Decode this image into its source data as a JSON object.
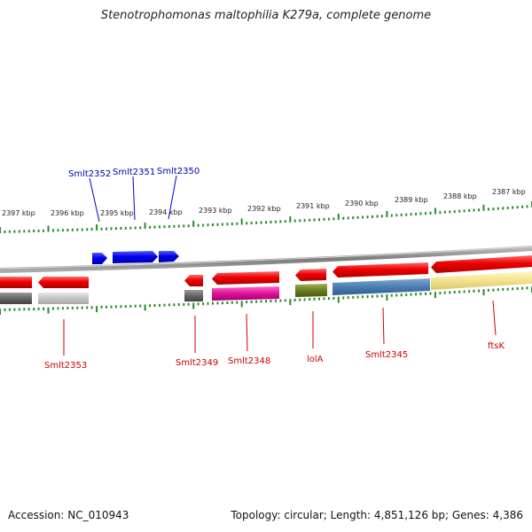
{
  "title": "Stenotrophomonas maltophilia K279a, complete genome",
  "footer": {
    "accession": "Accession: NC_010943",
    "summary": "Topology: circular; Length: 4,851,126 bp; Genes: 4,386"
  },
  "ticks": [
    "2397 kbp",
    "2396 kbp",
    "2395 kbp",
    "2394 kbp",
    "2393 kbp",
    "2392 kbp",
    "2391 kbp",
    "2390 kbp",
    "2389 kbp",
    "2388 kbp",
    "2387 kbp"
  ],
  "labels_top": [
    "Smlt2352",
    "Smlt2351",
    "Smlt2350"
  ],
  "labels_bottom": [
    "Smlt2353",
    "Smlt2349",
    "Smlt2348",
    "lolA",
    "Smlt2345",
    "ftsK"
  ],
  "colors": {
    "forward_gene": "#0000ee",
    "reverse_gene": "#ee0000",
    "tick": "#228822",
    "backbone": "#888888"
  }
}
